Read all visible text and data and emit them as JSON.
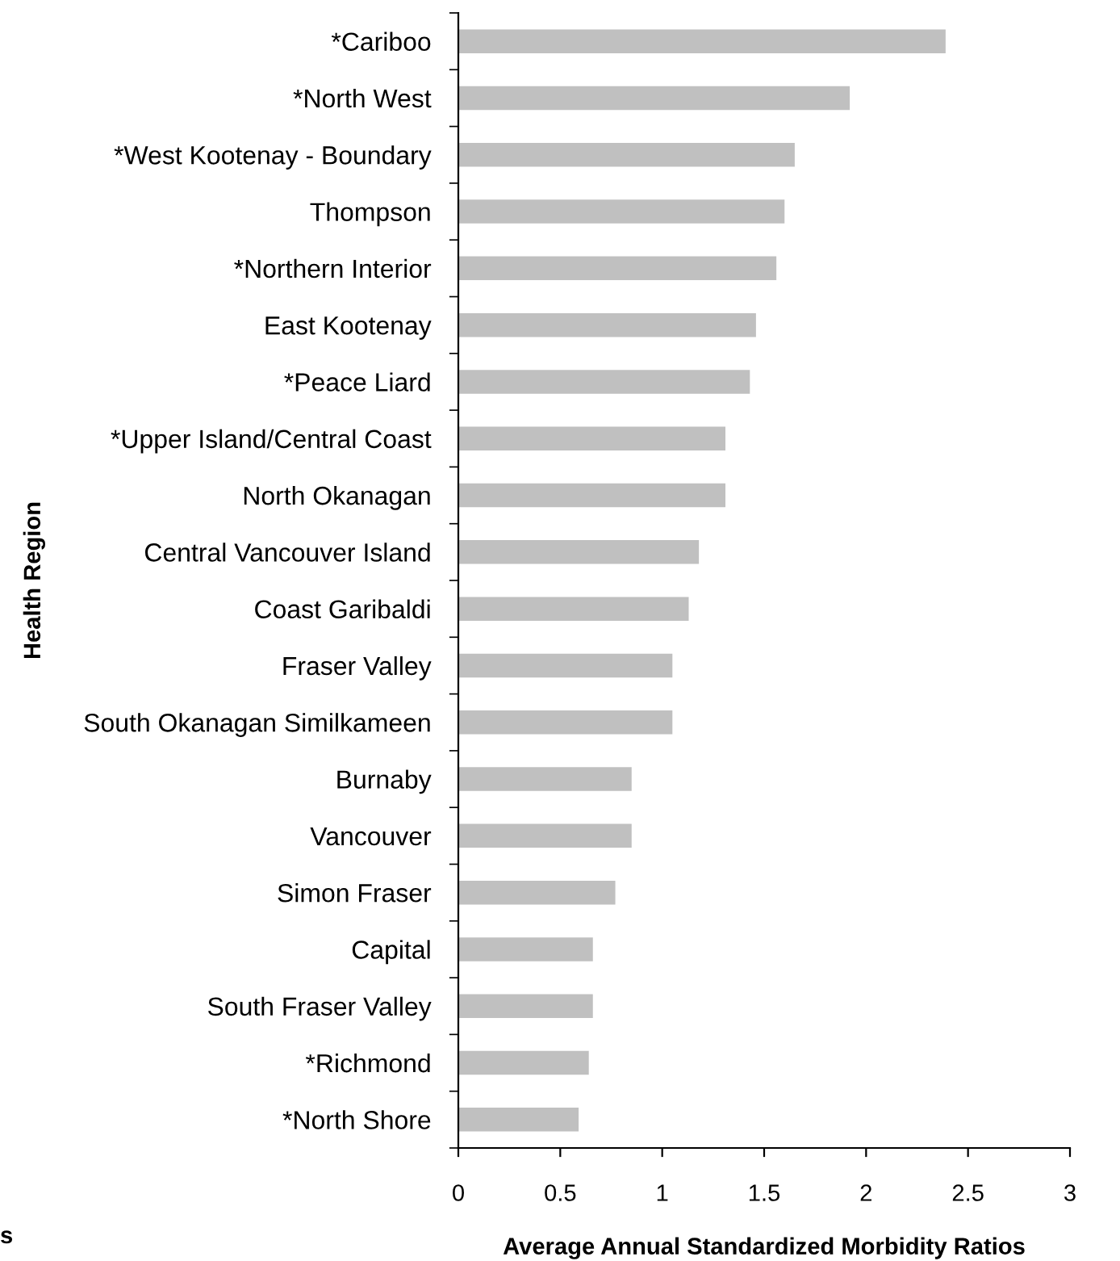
{
  "chart_data": {
    "type": "bar",
    "orientation": "horizontal",
    "xlabel": "Average Annual Standardized Morbidity Ratios",
    "ylabel": "Health Region",
    "categories": [
      "*Cariboo",
      "*North West",
      "*West Kootenay - Boundary",
      "Thompson",
      "*Northern Interior",
      "East Kootenay",
      "*Peace Liard",
      "*Upper Island/Central Coast",
      "North Okanagan",
      "Central Vancouver Island",
      "Coast Garibaldi",
      "Fraser Valley",
      "South Okanagan Similkameen",
      "Burnaby",
      "Vancouver",
      "Simon Fraser",
      "Capital",
      "South Fraser Valley",
      "*Richmond",
      "*North Shore"
    ],
    "values": [
      2.39,
      1.92,
      1.65,
      1.6,
      1.56,
      1.46,
      1.43,
      1.31,
      1.31,
      1.18,
      1.13,
      1.05,
      1.05,
      0.85,
      0.85,
      0.77,
      0.66,
      0.66,
      0.64,
      0.59
    ],
    "color": "#c0c0c0",
    "xlim": [
      0,
      3
    ],
    "xticks": [
      0,
      0.5,
      1,
      1.5,
      2,
      2.5,
      3
    ],
    "grid": false,
    "annotations": [
      "s"
    ]
  }
}
